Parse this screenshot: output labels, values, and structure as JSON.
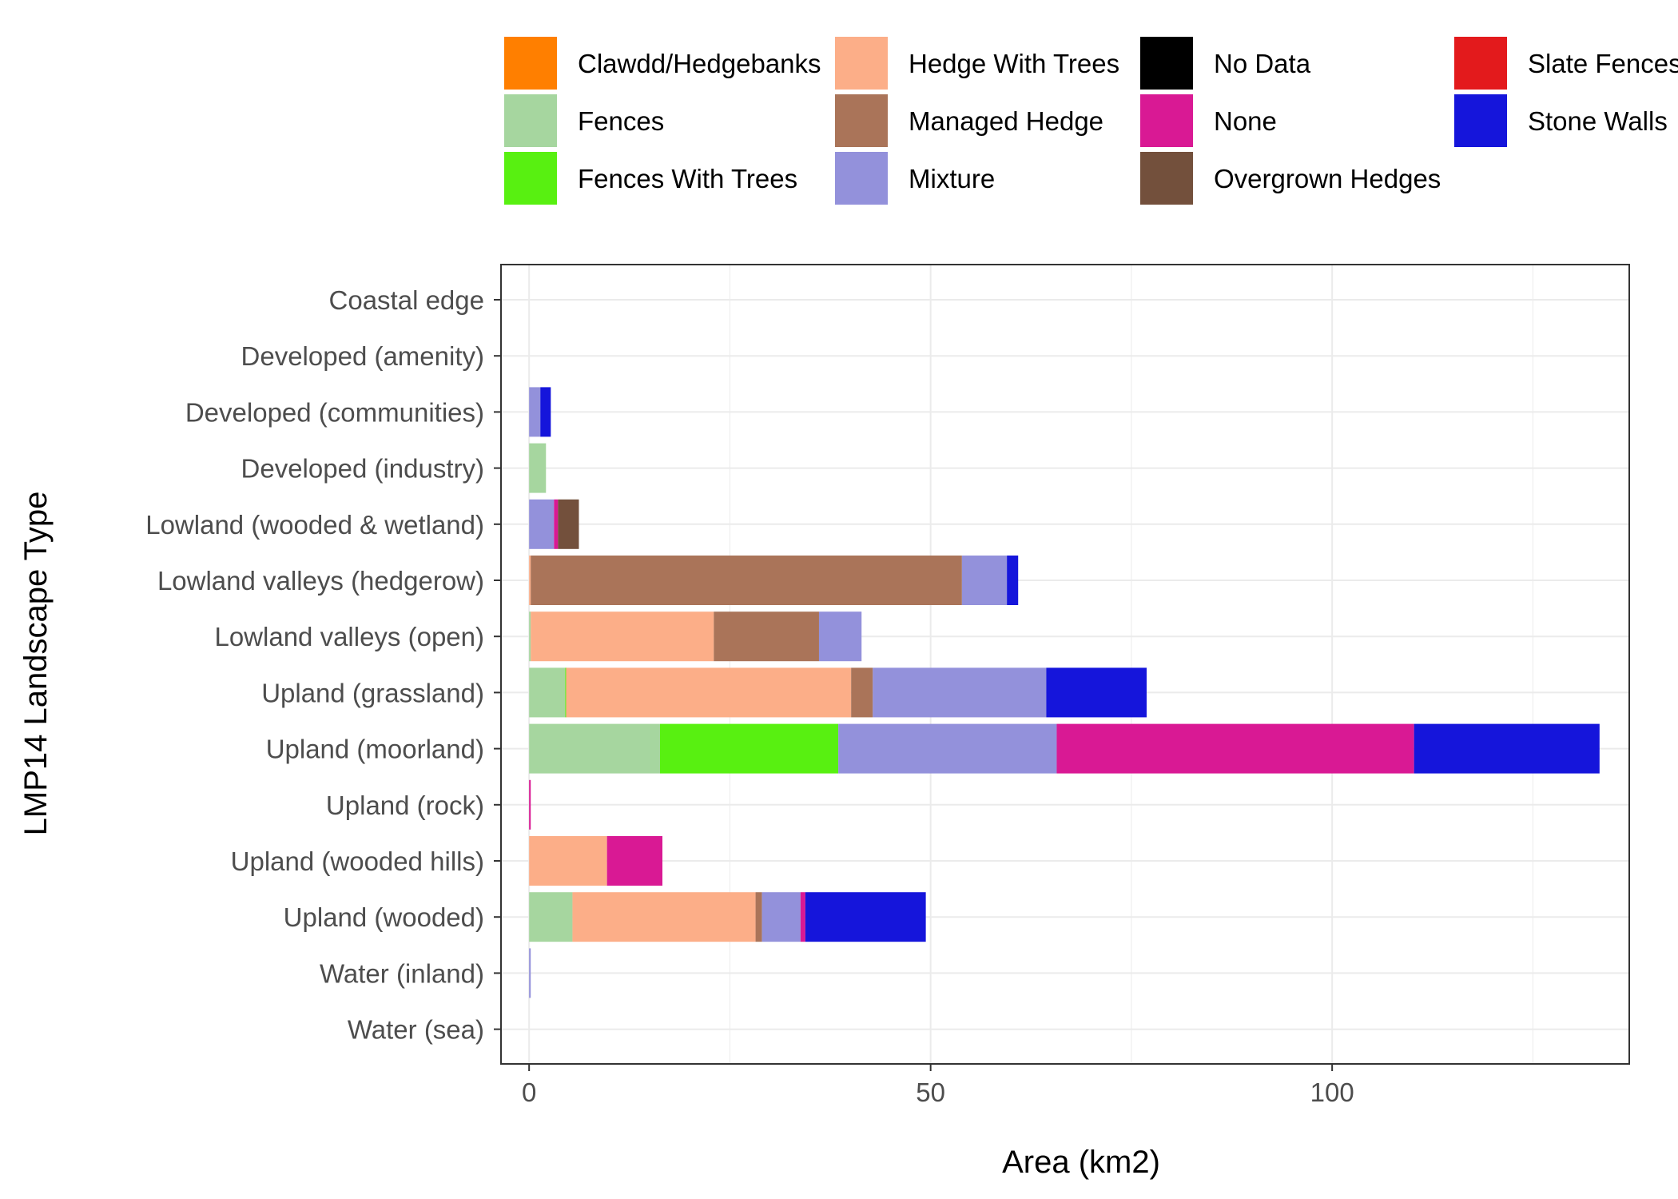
{
  "chart_data": {
    "type": "bar",
    "orientation": "horizontal",
    "stacked": true,
    "xlabel": "Area (km2)",
    "ylabel": "LMP14 Landscape Type",
    "xlim": [
      -3.5,
      137
    ],
    "x_ticks": [
      0,
      50,
      100
    ],
    "grid": true,
    "legend_position": "top",
    "categories": [
      "Coastal edge",
      "Developed (amenity)",
      "Developed (communities)",
      "Developed (industry)",
      "Lowland (wooded & wetland)",
      "Lowland valleys (hedgerow)",
      "Lowland valleys (open)",
      "Upland (grassland)",
      "Upland (moorland)",
      "Upland (rock)",
      "Upland (wooded hills)",
      "Upland (wooded)",
      "Water (inland)",
      "Water (sea)"
    ],
    "legend_order": [
      "Clawdd/Hedgebanks",
      "Fences",
      "Fences With Trees",
      "Hedge With Trees",
      "Managed Hedge",
      "Mixture",
      "No Data",
      "None",
      "Overgrown Hedges",
      "Slate Fences",
      "Stone Walls"
    ],
    "series": [
      {
        "name": "Clawdd/Hedgebanks",
        "color": "#FF7F00",
        "values": [
          0,
          0,
          0,
          0,
          0,
          0,
          0,
          0,
          0,
          0,
          0,
          0,
          0,
          0
        ]
      },
      {
        "name": "Fences",
        "color": "#A6D69F",
        "values": [
          0,
          0,
          0,
          2.1,
          0,
          0,
          0.2,
          4.5,
          16.3,
          0,
          0,
          5.4,
          0,
          0
        ]
      },
      {
        "name": "Fences With Trees",
        "color": "#58F011",
        "values": [
          0,
          0,
          0,
          0,
          0,
          0,
          0,
          0.1,
          22.2,
          0,
          0,
          0,
          0,
          0
        ]
      },
      {
        "name": "Hedge With Trees",
        "color": "#FCAE88",
        "values": [
          0,
          0,
          0,
          0,
          0,
          0.2,
          22.8,
          35.5,
          0,
          0,
          9.7,
          22.8,
          0,
          0
        ]
      },
      {
        "name": "Managed Hedge",
        "color": "#AA7459",
        "values": [
          0,
          0,
          0,
          0,
          0,
          53.7,
          13.1,
          2.7,
          0,
          0,
          0,
          0.8,
          0,
          0
        ]
      },
      {
        "name": "Mixture",
        "color": "#9391DB",
        "values": [
          0,
          0,
          1.4,
          0,
          3.1,
          5.6,
          5.3,
          21.6,
          27.2,
          0,
          0,
          4.8,
          0.2,
          0
        ]
      },
      {
        "name": "No Data",
        "color": "#000000",
        "values": [
          0,
          0,
          0,
          0,
          0,
          0,
          0,
          0,
          0,
          0,
          0,
          0,
          0,
          0
        ]
      },
      {
        "name": "None",
        "color": "#D91994",
        "values": [
          0,
          0,
          0,
          0,
          0.5,
          0,
          0,
          0,
          44.5,
          0.2,
          6.9,
          0.6,
          0,
          0
        ]
      },
      {
        "name": "Overgrown Hedges",
        "color": "#73503C",
        "values": [
          0,
          0,
          0,
          0,
          2.6,
          0,
          0,
          0,
          0,
          0,
          0,
          0,
          0,
          0
        ]
      },
      {
        "name": "Slate Fences",
        "color": "#E31A1C",
        "values": [
          0,
          0,
          0,
          0,
          0,
          0,
          0,
          0,
          0,
          0,
          0,
          0,
          0,
          0
        ]
      },
      {
        "name": "Stone Walls",
        "color": "#1515DB",
        "values": [
          0,
          0,
          1.3,
          0,
          0,
          1.4,
          0,
          12.5,
          23.1,
          0,
          0,
          15.0,
          0,
          0
        ]
      }
    ]
  }
}
